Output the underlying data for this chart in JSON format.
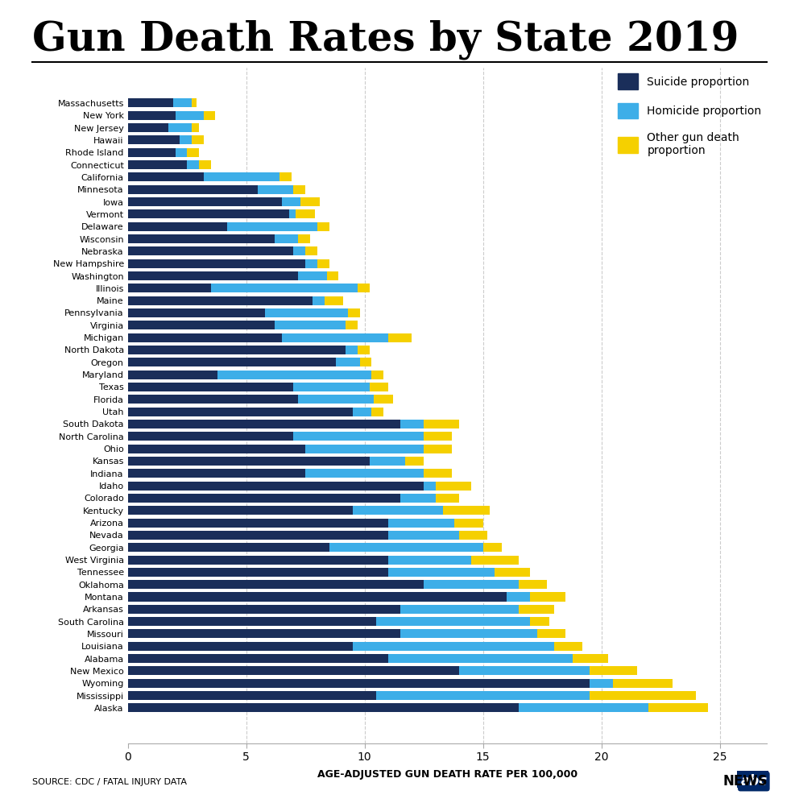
{
  "title": "Gun Death Rates by State 2019",
  "xlabel": "AGE-ADJUSTED GUN DEATH RATE PER 100,000",
  "source": "SOURCE: CDC / FATAL INJURY DATA",
  "states": [
    "Massachusetts",
    "New York",
    "New Jersey",
    "Hawaii",
    "Rhode Island",
    "Connecticut",
    "California",
    "Minnesota",
    "Iowa",
    "Vermont",
    "Delaware",
    "Wisconsin",
    "Nebraska",
    "New Hampshire",
    "Washington",
    "Illinois",
    "Maine",
    "Pennsylvania",
    "Virginia",
    "Michigan",
    "North Dakota",
    "Oregon",
    "Maryland",
    "Texas",
    "Florida",
    "Utah",
    "South Dakota",
    "North Carolina",
    "Ohio",
    "Kansas",
    "Indiana",
    "Idaho",
    "Colorado",
    "Kentucky",
    "Arizona",
    "Nevada",
    "Georgia",
    "West Virginia",
    "Tennessee",
    "Oklahoma",
    "Montana",
    "Arkansas",
    "South Carolina",
    "Missouri",
    "Louisiana",
    "Alabama",
    "New Mexico",
    "Wyoming",
    "Mississippi",
    "Alaska"
  ],
  "suicide": [
    1.9,
    2.0,
    1.7,
    2.2,
    2.0,
    2.5,
    3.2,
    5.5,
    6.5,
    6.8,
    4.2,
    6.2,
    7.0,
    7.5,
    7.2,
    3.5,
    7.8,
    5.8,
    6.2,
    6.5,
    9.2,
    8.8,
    3.8,
    7.0,
    7.2,
    9.5,
    11.5,
    7.0,
    7.5,
    10.2,
    7.5,
    12.5,
    11.5,
    9.5,
    11.0,
    11.0,
    8.5,
    11.0,
    11.0,
    12.5,
    16.0,
    11.5,
    10.5,
    11.5,
    9.5,
    11.0,
    14.0,
    19.5,
    10.5,
    16.5
  ],
  "homicide": [
    0.8,
    1.2,
    1.0,
    0.5,
    0.5,
    0.5,
    3.2,
    1.5,
    0.8,
    0.3,
    3.8,
    1.0,
    0.5,
    0.5,
    1.2,
    6.2,
    0.5,
    3.5,
    3.0,
    4.5,
    0.5,
    1.0,
    6.5,
    3.2,
    3.2,
    0.8,
    1.0,
    5.5,
    5.0,
    1.5,
    5.0,
    0.5,
    1.5,
    3.8,
    2.8,
    3.0,
    6.5,
    3.5,
    4.5,
    4.0,
    1.0,
    5.0,
    6.5,
    5.8,
    8.5,
    7.8,
    5.5,
    1.0,
    9.0,
    5.5
  ],
  "other": [
    0.2,
    0.5,
    0.3,
    0.5,
    0.5,
    0.5,
    0.5,
    0.5,
    0.8,
    0.8,
    0.5,
    0.5,
    0.5,
    0.5,
    0.5,
    0.5,
    0.8,
    0.5,
    0.5,
    1.0,
    0.5,
    0.5,
    0.5,
    0.8,
    0.8,
    0.5,
    1.5,
    1.2,
    1.2,
    0.8,
    1.2,
    1.5,
    1.0,
    2.0,
    1.2,
    1.2,
    0.8,
    2.0,
    1.5,
    1.2,
    1.5,
    1.5,
    0.8,
    1.2,
    1.2,
    1.5,
    2.0,
    2.5,
    4.5,
    2.5
  ],
  "suicide_color": "#1a2e5a",
  "homicide_color": "#3daee8",
  "other_color": "#f5d000",
  "background_color": "#ffffff",
  "xlim": [
    0,
    27
  ],
  "xticks": [
    0,
    5,
    10,
    15,
    20,
    25
  ]
}
